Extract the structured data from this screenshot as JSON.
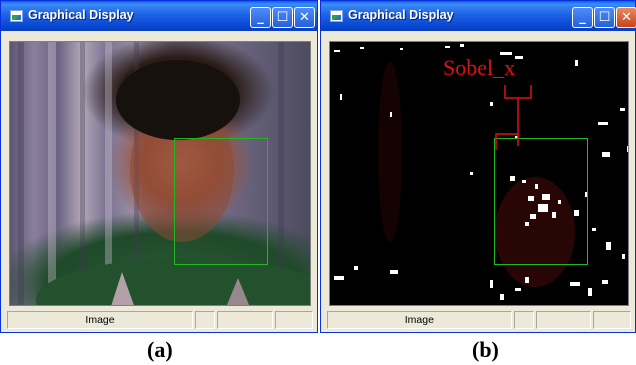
{
  "windows": [
    {
      "title": "Graphical Display",
      "controls": {
        "minimize": "_",
        "maximize": "☐",
        "close": "✕"
      },
      "status": [
        "Image",
        "",
        "",
        ""
      ]
    },
    {
      "title": "Graphical Display",
      "controls": {
        "minimize": "_",
        "maximize": "☐",
        "close": "✕"
      },
      "status": [
        "Image",
        "",
        "",
        ""
      ],
      "annotation": "Sobel_x"
    }
  ],
  "captions": [
    "(a)",
    "(b)"
  ],
  "colors": {
    "face_box": "#1fb81f",
    "annotation": "#e01010",
    "title_bar": "#0845d0"
  }
}
